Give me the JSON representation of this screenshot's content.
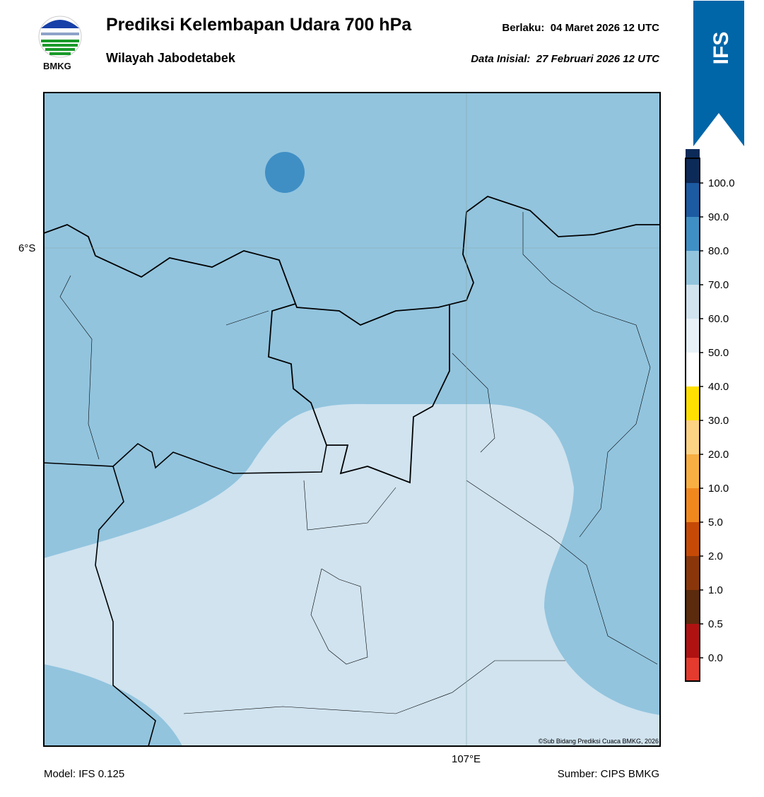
{
  "header": {
    "title": "Prediksi Kelembapan Udara 700 hPa",
    "subtitle": "Wilayah Jabodetabek",
    "valid_label": "Berlaku:",
    "valid_time": "04 Maret 2026 12 UTC",
    "init_label": "Data Inisial:",
    "init_time": "27 Februari 2026 12 UTC",
    "logo_text": "BMKG",
    "badge": "IFS"
  },
  "map": {
    "lat_label": "6°S",
    "lon_label": "107°E",
    "copyright": "©Sub Bidang Prediksi Cuaca BMKG, 2026"
  },
  "colorbar": {
    "ticks": [
      "0.0",
      "0.5",
      "1.0",
      "2.0",
      "5.0",
      "10.0",
      "20.0",
      "30.0",
      "40.0",
      "50.0",
      "60.0",
      "70.0",
      "80.0",
      "90.0",
      "100.0"
    ],
    "colors": [
      "#e53a2e",
      "#b01212",
      "#5c2a0c",
      "#8a360a",
      "#c64a06",
      "#f0881e",
      "#f8ae42",
      "#fcd283",
      "#ffe000",
      "#ffffff",
      "#e8f1f8",
      "#d0e3ef",
      "#92c4de",
      "#3f8fc5",
      "#1c5aa2",
      "#0c2a58",
      "#2a0a4e"
    ]
  },
  "footer": {
    "model": "Model: IFS 0.125",
    "source": "Sumber: CIPS BMKG"
  }
}
